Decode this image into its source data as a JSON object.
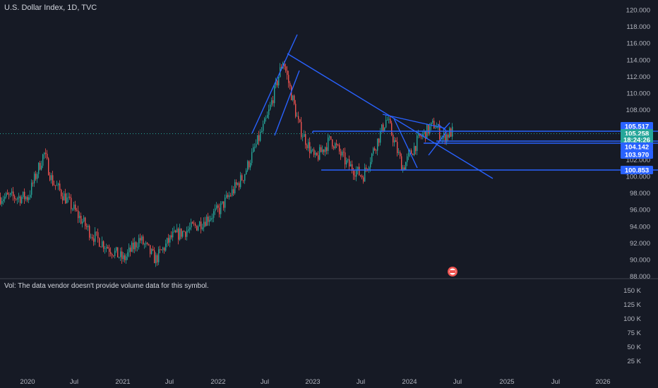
{
  "header": {
    "title": "U.S. Dollar Index, 1D, TVC"
  },
  "volume_pane": {
    "message": "Vol: The data vendor doesn't provide volume data for this symbol.",
    "ticks": [
      "150 K",
      "125 K",
      "100 K",
      "75 K",
      "50 K",
      "25 K"
    ]
  },
  "colors": {
    "background": "#161a25",
    "up": "#26a69a",
    "down": "#ef5350",
    "drawing": "#2962ff",
    "price_tag": "#2962ff",
    "current_tag": "#26a69a"
  },
  "chart_data": {
    "type": "candlestick",
    "ylim": [
      88,
      120
    ],
    "y_ticks": [
      "120.000",
      "118.000",
      "116.000",
      "114.000",
      "112.000",
      "110.000",
      "108.000",
      "106.000",
      "104.000",
      "102.000",
      "100.000",
      "98.000",
      "96.000",
      "94.000",
      "92.000",
      "90.000",
      "88.000"
    ],
    "x_ticks": [
      "2020",
      "Jul",
      "2021",
      "Jul",
      "2022",
      "Jul",
      "2023",
      "Jul",
      "2024",
      "Jul",
      "2025",
      "Jul",
      "2026"
    ],
    "price_tags": [
      {
        "label": "105.517",
        "value": 105.517,
        "kind": "level"
      },
      {
        "label": "105.258",
        "value": 105.258,
        "kind": "current"
      },
      {
        "label": "18:24:26",
        "value": 104.65,
        "kind": "countdown"
      },
      {
        "label": "104.142",
        "value": 104.142,
        "kind": "level"
      },
      {
        "label": "103.970",
        "value": 103.97,
        "kind": "level"
      },
      {
        "label": "100.853",
        "value": 100.853,
        "kind": "level"
      }
    ],
    "series": [
      {
        "x": [
          "2020-01",
          "2020-03",
          "2020-04",
          "2020-06",
          "2020-09",
          "2021-01",
          "2021-03",
          "2021-05",
          "2021-07",
          "2021-10",
          "2022-01",
          "2022-04",
          "2022-07",
          "2022-09",
          "2022-11",
          "2023-01",
          "2023-03",
          "2023-05",
          "2023-07",
          "2023-10",
          "2023-12",
          "2024-02",
          "2024-04",
          "2024-05",
          "2024-06"
        ],
        "values": [
          97.5,
          102.8,
          99.5,
          97,
          93,
          90,
          92.5,
          90,
          92.7,
          94,
          96,
          100,
          107,
          114,
          106,
          102,
          104.5,
          101.5,
          100,
          107,
          101,
          104.5,
          106.3,
          104.6,
          105.3
        ]
      }
    ]
  }
}
